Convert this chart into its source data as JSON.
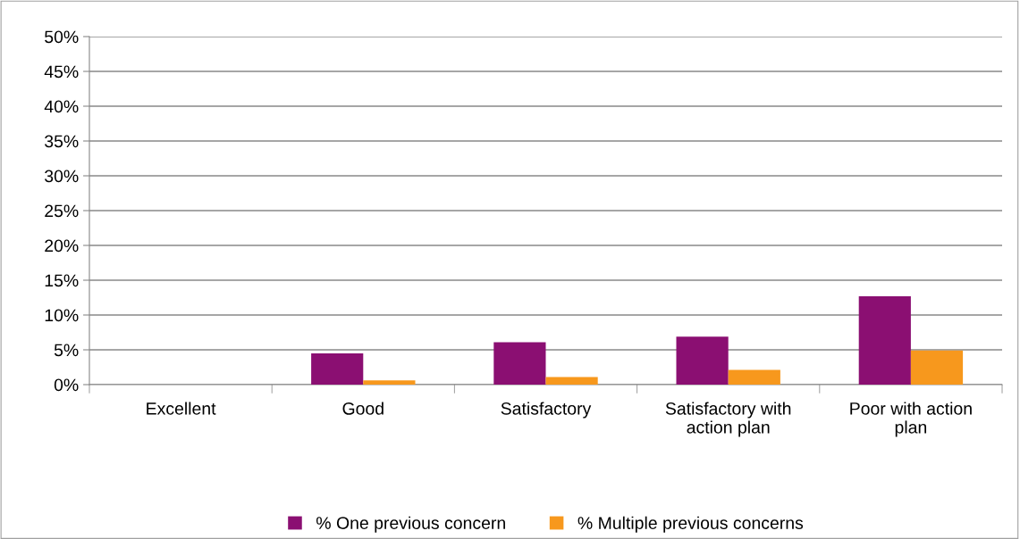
{
  "chart_data": {
    "type": "bar",
    "categories": [
      "Excellent",
      "Good",
      "Satisfactory",
      "Satisfactory with\naction plan",
      "Poor with action\nplan"
    ],
    "series": [
      {
        "name": "% One previous concern",
        "color": "#8b0f72",
        "values": [
          0,
          4.5,
          6.1,
          6.9,
          12.7
        ]
      },
      {
        "name": "% Multiple previous concerns",
        "color": "#f7981d",
        "values": [
          0,
          0.6,
          1.1,
          2.1,
          4.9
        ]
      }
    ],
    "ylim": [
      0,
      50
    ],
    "yticks": [
      {
        "value": 0,
        "label": "0%"
      },
      {
        "value": 5,
        "label": "5%"
      },
      {
        "value": 10,
        "label": "10%"
      },
      {
        "value": 15,
        "label": "15%"
      },
      {
        "value": 20,
        "label": "20%"
      },
      {
        "value": 25,
        "label": "25%"
      },
      {
        "value": 30,
        "label": "30%"
      },
      {
        "value": 35,
        "label": "35%"
      },
      {
        "value": 40,
        "label": "40%"
      },
      {
        "value": 45,
        "label": "45%"
      },
      {
        "value": 50,
        "label": "50%"
      }
    ],
    "grid": "y",
    "legend": "bottom"
  }
}
